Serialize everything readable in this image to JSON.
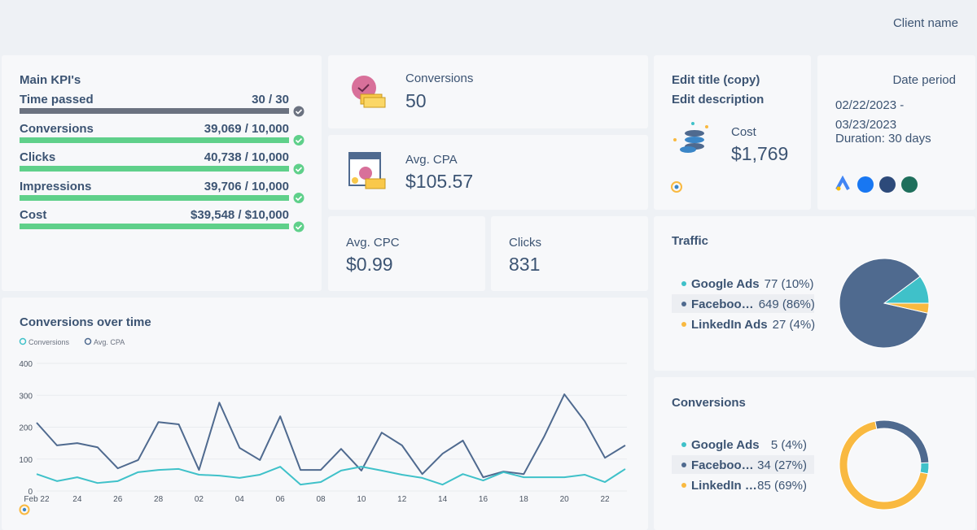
{
  "header": {
    "client_name": "Client name"
  },
  "kpi": {
    "title": "Main KPI's",
    "rows": [
      {
        "label": "Time passed",
        "value": "30 / 30"
      },
      {
        "label": "Conversions",
        "value": "39,069 / 10,000"
      },
      {
        "label": "Clicks",
        "value": "40,738 / 10,000"
      },
      {
        "label": "Impressions",
        "value": "39,706 / 10,000"
      },
      {
        "label": "Cost",
        "value": "$39,548 / $10,000"
      }
    ]
  },
  "cards": {
    "conversions": {
      "label": "Conversions",
      "value": "50"
    },
    "avg_cpa": {
      "label": "Avg. CPA",
      "value": "$105.57"
    },
    "avg_cpc": {
      "label": "Avg. CPC",
      "value": "$0.99"
    },
    "clicks": {
      "label": "Clicks",
      "value": "831"
    },
    "cost": {
      "title": "Edit title (copy)",
      "description": "Edit description",
      "label": "Cost",
      "value": "$1,769"
    },
    "date_period": {
      "title": "Date period",
      "range": "02/22/2023 - 03/23/2023",
      "duration": "Duration: 30 days"
    }
  },
  "chart_data": [
    {
      "type": "line",
      "title": "Conversions over time",
      "categories": [
        "Feb 22",
        null,
        "24",
        null,
        "26",
        null,
        "28",
        null,
        "02",
        null,
        "04",
        null,
        "06",
        null,
        "08",
        null,
        "10",
        null,
        "12",
        null,
        "14",
        null,
        "16",
        null,
        "18",
        null,
        "20",
        null,
        "22",
        null
      ],
      "series": [
        {
          "name": "Conversions",
          "color": "#3fc1c9",
          "values": [
            53,
            31,
            43,
            25,
            31,
            59,
            66,
            69,
            51,
            48,
            41,
            51,
            76,
            20,
            28,
            64,
            76,
            64,
            51,
            41,
            20,
            53,
            33,
            59,
            43,
            43,
            43,
            51,
            28,
            69
          ]
        },
        {
          "name": "Avg. CPA",
          "color": "#4f6a8f",
          "values": [
            214,
            143,
            150,
            137,
            71,
            97,
            216,
            209,
            66,
            277,
            135,
            97,
            234,
            66,
            66,
            132,
            64,
            183,
            143,
            53,
            117,
            158,
            43,
            61,
            53,
            170,
            303,
            219,
            104,
            143
          ]
        }
      ],
      "ylim": [
        0,
        400
      ],
      "yticks": [
        0,
        100,
        200,
        300,
        400
      ],
      "grid": true
    },
    {
      "type": "pie",
      "title": "Traffic",
      "categories": [
        "Google Ads",
        "Faceboo…",
        "LinkedIn Ads"
      ],
      "values": [
        77,
        649,
        27
      ],
      "value_labels": [
        "77 (10%)",
        "649 (86%)",
        "27 (4%)"
      ],
      "colors": [
        "#3fc1c9",
        "#4f6a8f",
        "#f9b940"
      ]
    },
    {
      "type": "donut",
      "title": "Conversions",
      "categories": [
        "Google Ads",
        "Faceboo…",
        "LinkedIn …"
      ],
      "values": [
        5,
        34,
        85
      ],
      "value_labels": [
        "5 (4%)",
        "34 (27%)",
        "85 (69%)"
      ],
      "colors": [
        "#3fc1c9",
        "#4f6a8f",
        "#f9b940"
      ]
    }
  ]
}
